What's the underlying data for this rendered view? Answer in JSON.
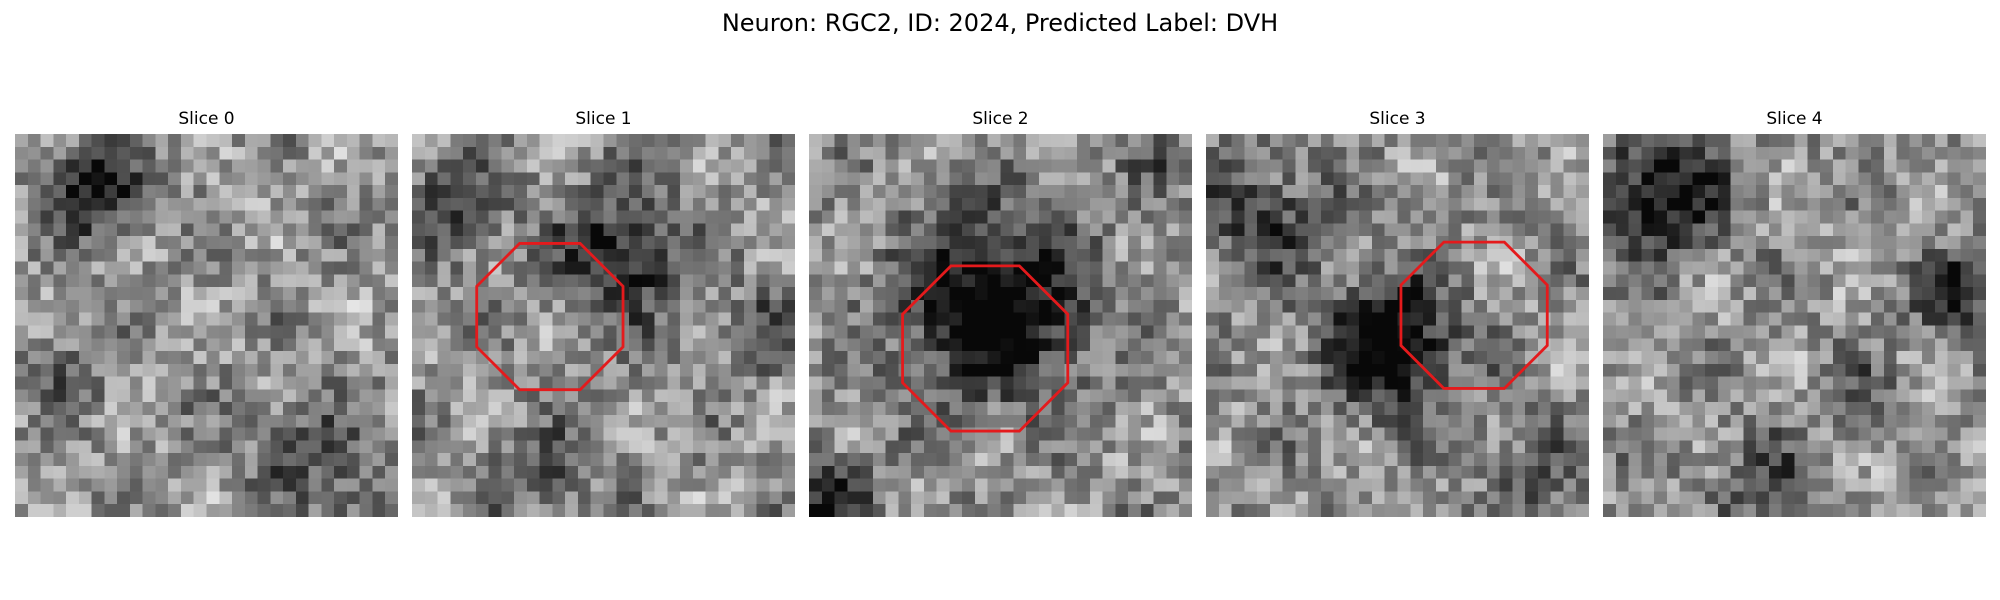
{
  "figure": {
    "title": "Neuron: RGC2, ID: 2024, Predicted Label: DVH"
  },
  "panels": [
    {
      "title": "Slice 0",
      "roi": false
    },
    {
      "title": "Slice 1",
      "roi": true
    },
    {
      "title": "Slice 2",
      "roi": true
    },
    {
      "title": "Slice 3",
      "roi": true
    },
    {
      "title": "Slice 4",
      "roi": false
    }
  ],
  "colors": {
    "roi_outline": "#e41a1c",
    "background": "#ffffff"
  },
  "colormap": "grayscale"
}
